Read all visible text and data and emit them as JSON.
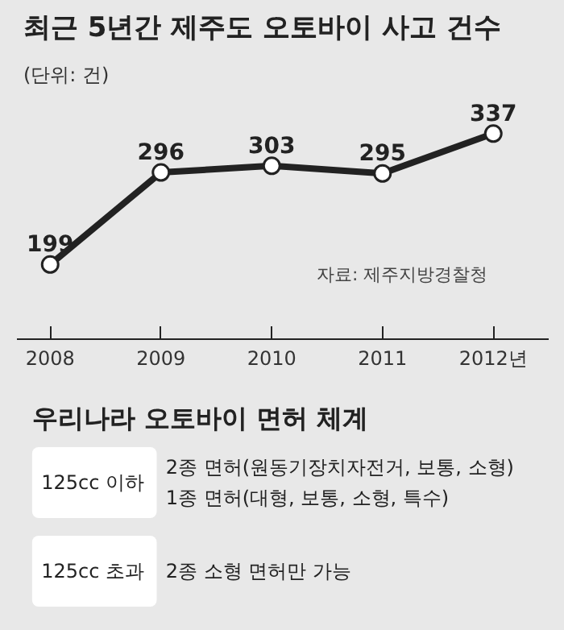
{
  "chart_data": [
    {
      "type": "line",
      "title": "최근 5년간 제주도 오토바이 사고 건수",
      "subtitle": "(단위: 건)",
      "categories": [
        "2008",
        "2009",
        "2010",
        "2011",
        "2012년"
      ],
      "series": [
        {
          "color": "#222222",
          "values": [
            199,
            296,
            303,
            295,
            337
          ]
        }
      ],
      "data_labels": true,
      "marker": "circle",
      "tick_labels": "x",
      "annotations": [
        "자료: 제주지방경찰청"
      ]
    },
    {
      "type": "other",
      "title": "우리나라 오토바이 면허 체계",
      "annotations": [
        "125cc 이하",
        "2종 면허(원동기장치자전거, 보통, 소형)",
        "1종 면허(대형, 보통, 소형, 특수)",
        "125cc 초과",
        "2종 소형 면허만 가능"
      ]
    }
  ]
}
